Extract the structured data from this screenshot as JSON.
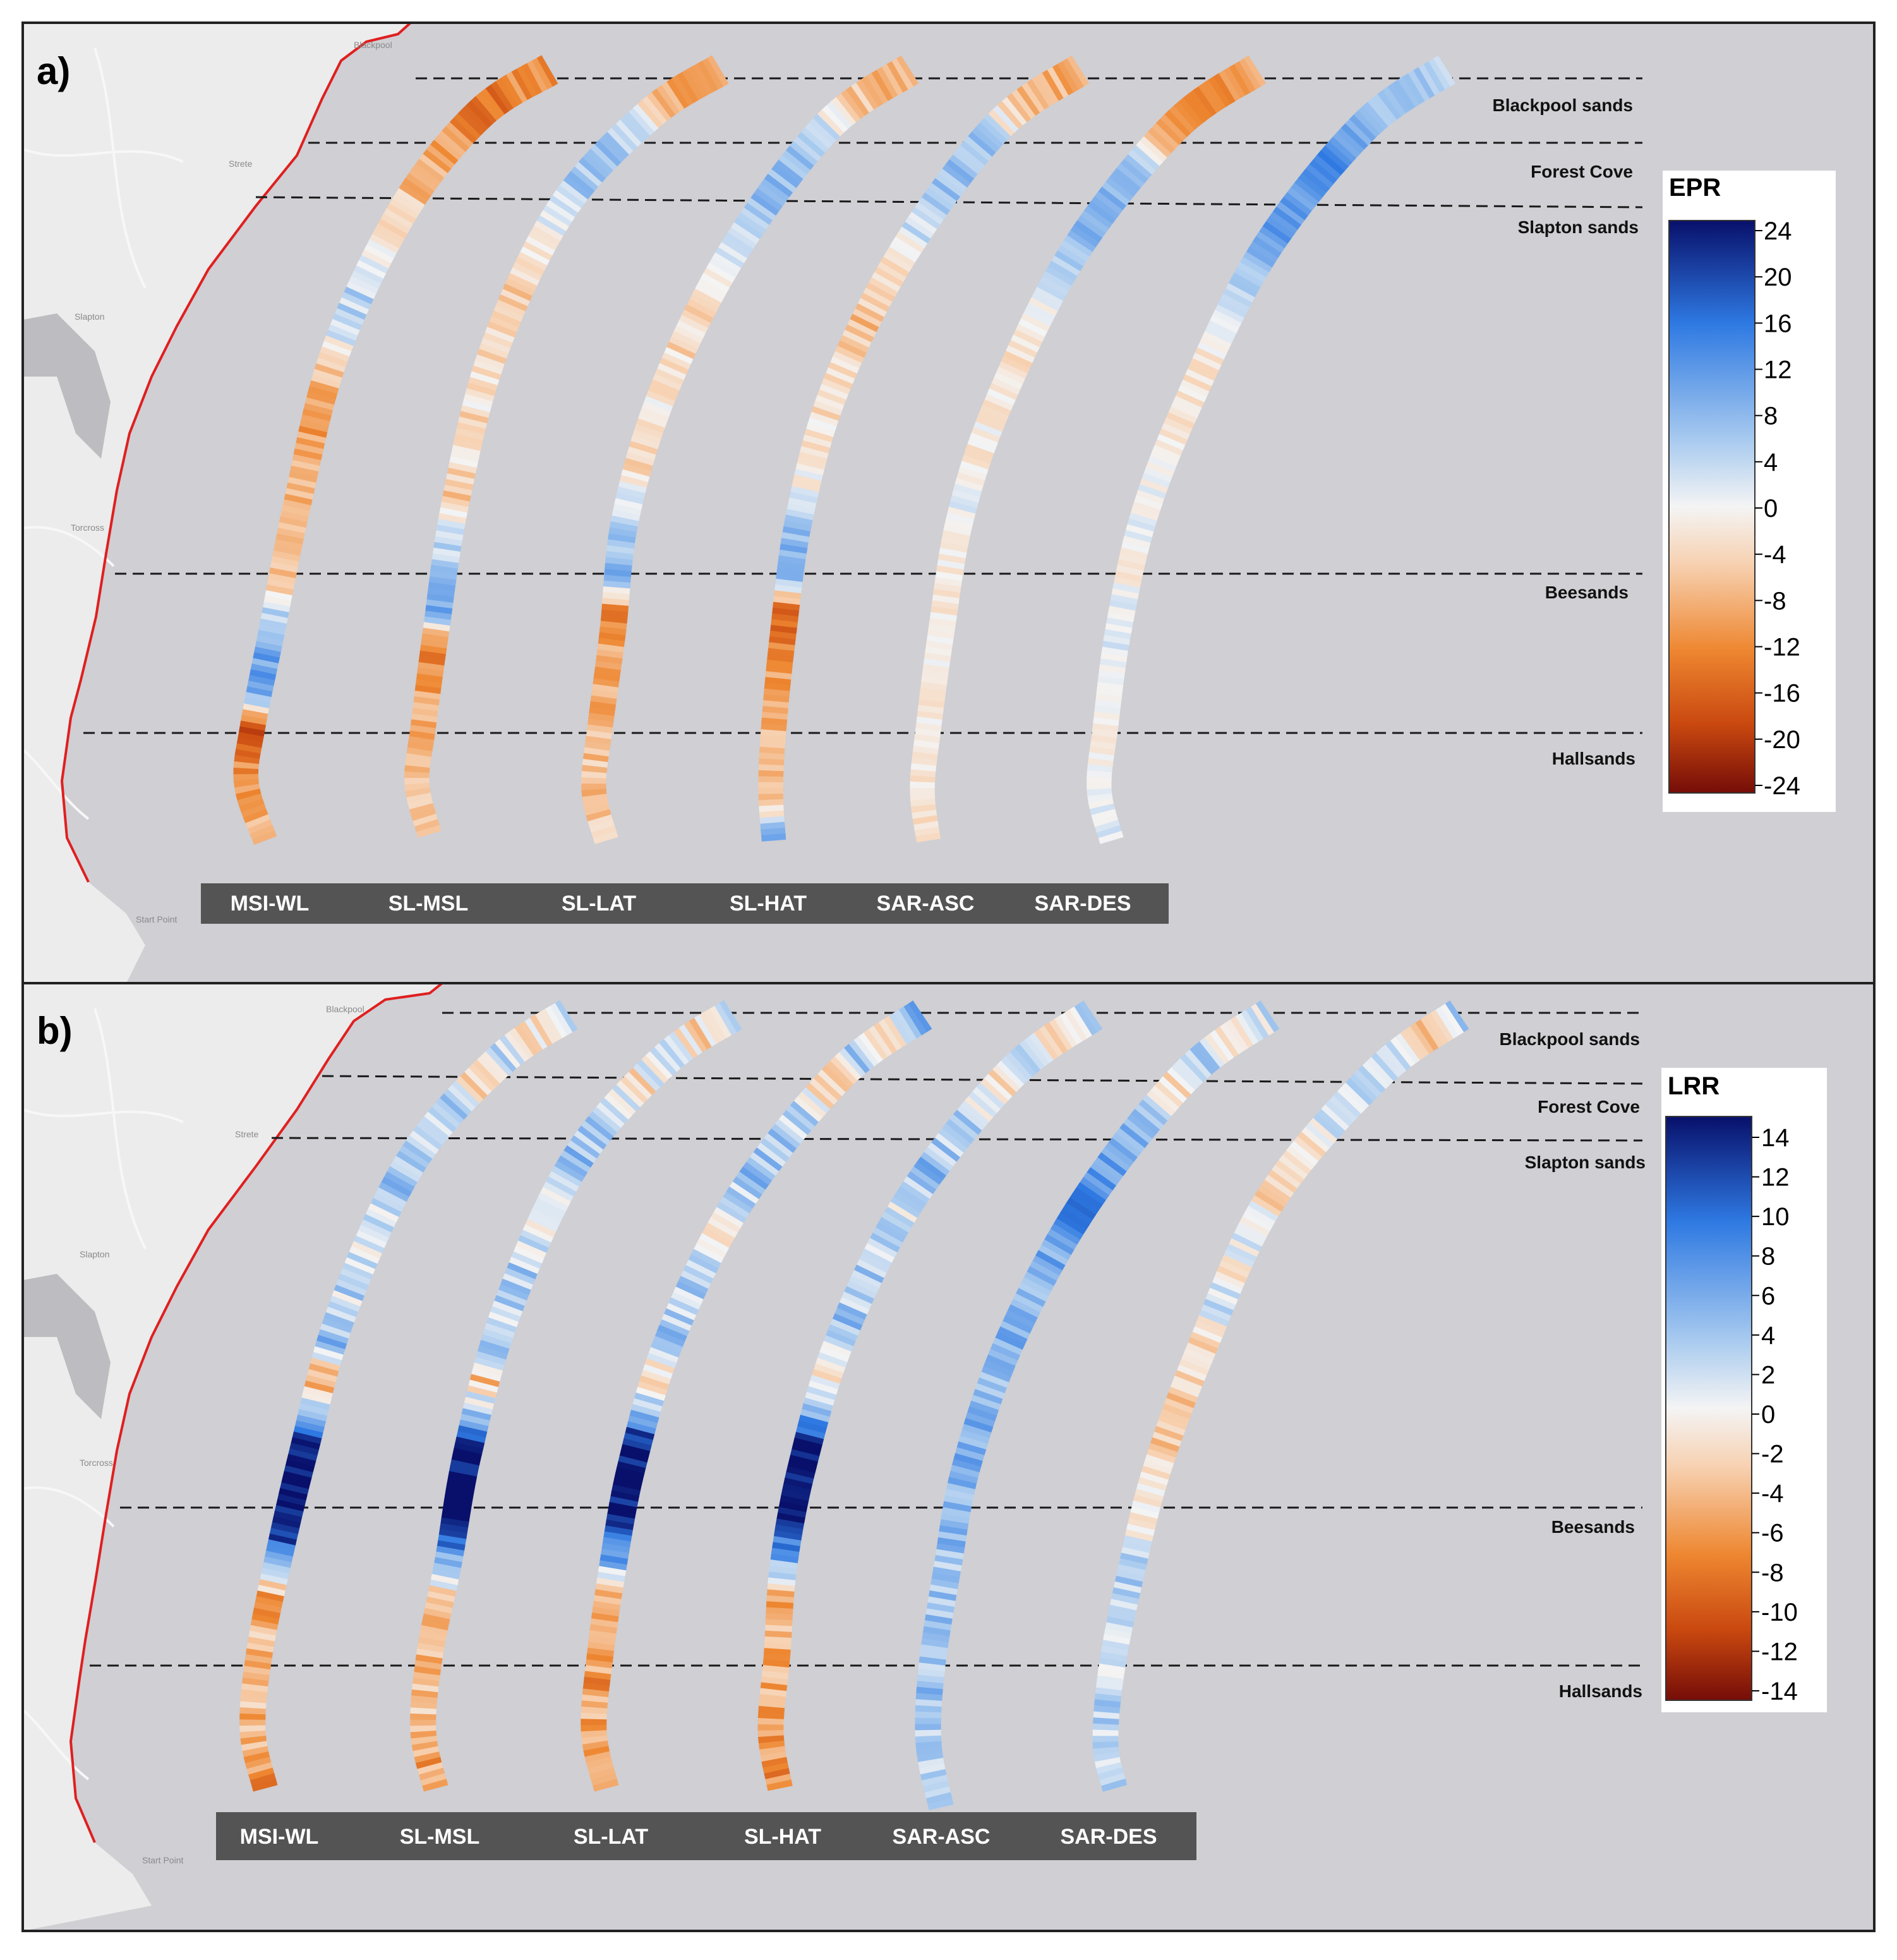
{
  "colors": {
    "sea": "#cfcfd4",
    "land": "#ececec",
    "coastline": "#e01f1f",
    "estuary": "#bdbdc1",
    "label_box": "#545454",
    "scale_dark_blue": "#08106b",
    "scale_blue": "#2e79e2",
    "scale_light_blue": "#a6c9ef",
    "scale_white": "#f4f4f4",
    "scale_light_orange": "#f7d1b1",
    "scale_orange": "#ee8731",
    "scale_dark_orange": "#c9480f",
    "scale_dark_red": "#750d08"
  },
  "place_names": [
    "Blackpool",
    "Strete",
    "Slapton",
    "Torcross",
    "Start Point",
    "Beesands",
    "Hallsands"
  ],
  "location_labels": [
    "Blackpool sands",
    "Forest Cove",
    "Slapton sands",
    "Beesands",
    "Hallsands"
  ],
  "methods": [
    "MSI-WL",
    "SL-MSL",
    "SL-LAT",
    "SL-HAT",
    "SAR-ASC",
    "SAR-DES"
  ],
  "panels": [
    {
      "id": "a",
      "label": "a)",
      "colorbar": {
        "title": "EPR",
        "ticks": [
          "24",
          "20",
          "16",
          "12",
          "8",
          "4",
          "0",
          "-4",
          "-8",
          "-12",
          "-16",
          "-20",
          "-24"
        ],
        "range": [
          -24,
          24
        ]
      },
      "methods": [
        {
          "name": "MSI-WL",
          "profile": [
            -10,
            -12,
            -15,
            -10,
            -8,
            -6,
            -4,
            2,
            4,
            3,
            -5,
            -8,
            -10,
            -8,
            -9,
            -6,
            -5,
            5,
            10,
            12,
            -18,
            -12,
            -9,
            -8
          ],
          "noise": 3.5
        },
        {
          "name": "SL-MSL",
          "profile": [
            -8,
            -10,
            -4,
            4,
            6,
            5,
            2,
            -3,
            -5,
            -4,
            -3,
            -2,
            -4,
            -3,
            -5,
            2,
            8,
            10,
            -15,
            -10,
            -8,
            -7,
            -6,
            -5
          ],
          "noise": 3.5
        },
        {
          "name": "SL-LAT",
          "profile": [
            -6,
            -8,
            -3,
            6,
            8,
            7,
            4,
            2,
            -3,
            -4,
            -3,
            -2,
            -3,
            -4,
            1,
            6,
            9,
            -14,
            -9,
            -8,
            -7,
            -6,
            -6,
            -5
          ],
          "noise": 3.5
        },
        {
          "name": "SL-HAT",
          "profile": [
            -7,
            -9,
            -5,
            5,
            7,
            6,
            3,
            -3,
            -5,
            -6,
            -4,
            -3,
            -2,
            -3,
            2,
            7,
            11,
            -17,
            -11,
            -9,
            -8,
            -7,
            -6,
            10
          ],
          "noise": 3.5
        },
        {
          "name": "SAR-ASC",
          "profile": [
            -9,
            -11,
            -14,
            -8,
            6,
            8,
            9,
            6,
            3,
            -2,
            -3,
            -2,
            -1,
            -2,
            1,
            0,
            -1,
            -2,
            1,
            -2,
            -1,
            -2,
            -2,
            -3
          ],
          "noise": 2.2
        },
        {
          "name": "SAR-DES",
          "profile": [
            4,
            8,
            6,
            10,
            14,
            10,
            12,
            8,
            4,
            2,
            -3,
            -2,
            -2,
            -1,
            1,
            0,
            -1,
            1,
            2,
            1,
            0,
            -1,
            1,
            2
          ],
          "noise": 2.2
        }
      ]
    },
    {
      "id": "b",
      "label": "b)",
      "colorbar": {
        "title": "LRR",
        "ticks": [
          "14",
          "12",
          "10",
          "8",
          "6",
          "4",
          "2",
          "0",
          "-2",
          "-4",
          "-6",
          "-8",
          "-10",
          "-12",
          "-14"
        ],
        "range": [
          -14,
          14
        ]
      },
      "methods": [
        {
          "name": "MSI-WL",
          "profile": [
            4,
            -2,
            3,
            -2,
            3,
            2,
            4,
            3,
            1,
            3,
            2,
            4,
            -5,
            4,
            14,
            15,
            14,
            6,
            -6,
            -4,
            -5,
            -4,
            -5,
            -6
          ],
          "noise": 2.8
        },
        {
          "name": "SL-MSL",
          "profile": [
            4,
            -3,
            3,
            -2,
            2,
            3,
            4,
            2,
            1,
            3,
            2,
            4,
            -4,
            4,
            14,
            15,
            13,
            5,
            -5,
            -4,
            -5,
            -4,
            -5,
            -6
          ],
          "noise": 2.8
        },
        {
          "name": "SL-LAT",
          "profile": [
            5,
            -2,
            3,
            -3,
            2,
            3,
            4,
            2,
            -1,
            3,
            2,
            4,
            -3,
            5,
            14,
            15,
            13,
            5,
            -5,
            -4,
            -6,
            -5,
            -6,
            -6
          ],
          "noise": 2.8
        },
        {
          "name": "SL-HAT",
          "profile": [
            6,
            -5,
            3,
            -3,
            2,
            3,
            4,
            1,
            2,
            3,
            3,
            4,
            -3,
            5,
            14,
            15,
            14,
            5,
            -5,
            -4,
            -5,
            -5,
            -6,
            -6
          ],
          "noise": 2.8
        },
        {
          "name": "SAR-ASC",
          "profile": [
            2,
            -3,
            4,
            -2,
            3,
            5,
            7,
            8,
            6,
            5,
            4,
            5,
            4,
            6,
            5,
            4,
            5,
            3,
            4,
            3,
            4,
            3,
            2,
            3
          ],
          "noise": 2.2
        },
        {
          "name": "SAR-DES",
          "profile": [
            3,
            -4,
            2,
            1,
            3,
            -1,
            -2,
            -2,
            2,
            -2,
            3,
            -3,
            -2,
            -4,
            -3,
            -2,
            -1,
            2,
            3,
            1,
            2,
            3,
            2,
            3
          ],
          "noise": 2.2
        }
      ]
    }
  ]
}
